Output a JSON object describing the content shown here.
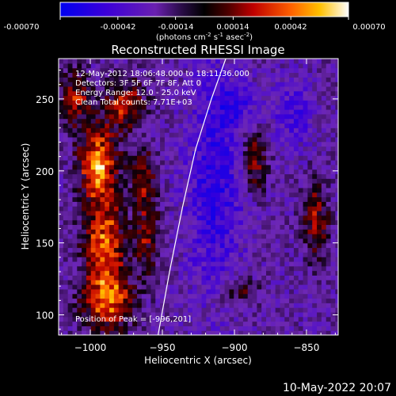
{
  "chart_data": {
    "type": "heatmap",
    "title": "Reconstructed RHESSI Image",
    "xlabel": "Heliocentric X (arcsec)",
    "ylabel": "Heliocentric Y (arcsec)",
    "xlim": [
      -1022,
      -828
    ],
    "ylim": [
      86,
      278
    ],
    "x_ticks": [
      -1000,
      -950,
      -900,
      -850
    ],
    "y_ticks": [
      100,
      150,
      200,
      250
    ],
    "colorbar": {
      "range": [
        -0.0007,
        0.0007
      ],
      "ticks": [
        "-0.00070",
        "-0.00042",
        "-0.00014",
        "0.00014",
        "0.00042",
        "0.00070"
      ],
      "units_text": "(photons cm",
      "units_exp1": "-2",
      "units_mid1": " s",
      "units_exp2": "-1",
      "units_mid2": " asec",
      "units_exp3": "-2",
      "units_close": ")"
    },
    "annotations": [
      "12-May-2012 18:06:48.000 to 18:11:36.000",
      "Detectors: 3F 5F 6F 7F 8F, Att 0",
      "Energy Range: 12.0 - 25.0 keV",
      "Clean     Total counts: 7.71E+03"
    ],
    "peak_label": "Position of Peak = [-996,201]",
    "peak": [
      -996,
      201
    ],
    "limb_curve": [
      [
        -953,
        86
      ],
      [
        -945,
        130
      ],
      [
        -936,
        175
      ],
      [
        -927,
        215
      ],
      [
        -916,
        250
      ],
      [
        -906,
        278
      ]
    ],
    "bright_regions": [
      {
        "x": -996,
        "y": 205,
        "sx": 9,
        "sy": 18,
        "v": 0.00068
      },
      {
        "x": -992,
        "y": 150,
        "sx": 10,
        "sy": 22,
        "v": 0.00058
      },
      {
        "x": -990,
        "y": 108,
        "sx": 12,
        "sy": 14,
        "v": 0.00062
      },
      {
        "x": -978,
        "y": 245,
        "sx": 9,
        "sy": 12,
        "v": 0.00045
      },
      {
        "x": -1012,
        "y": 250,
        "sx": 7,
        "sy": 14,
        "v": 0.0004
      },
      {
        "x": -965,
        "y": 195,
        "sx": 6,
        "sy": 14,
        "v": 0.00038
      },
      {
        "x": -962,
        "y": 155,
        "sx": 6,
        "sy": 18,
        "v": 0.00035
      },
      {
        "x": -888,
        "y": 205,
        "sx": 6,
        "sy": 14,
        "v": 0.0004
      },
      {
        "x": -845,
        "y": 165,
        "sx": 6,
        "sy": 18,
        "v": 0.00042
      },
      {
        "x": -900,
        "y": 115,
        "sx": 9,
        "sy": 8,
        "v": 0.00028
      }
    ],
    "dim_regions": [
      {
        "x": -915,
        "y": 190,
        "sx": 14,
        "sy": 55,
        "v": -0.0006
      },
      {
        "x": -860,
        "y": 240,
        "sx": 10,
        "sy": 16,
        "v": -0.00045
      },
      {
        "x": -900,
        "y": 245,
        "sx": 10,
        "sy": 10,
        "v": -0.0004
      }
    ]
  },
  "footer": {
    "date": "10-May-2022 20:07"
  }
}
